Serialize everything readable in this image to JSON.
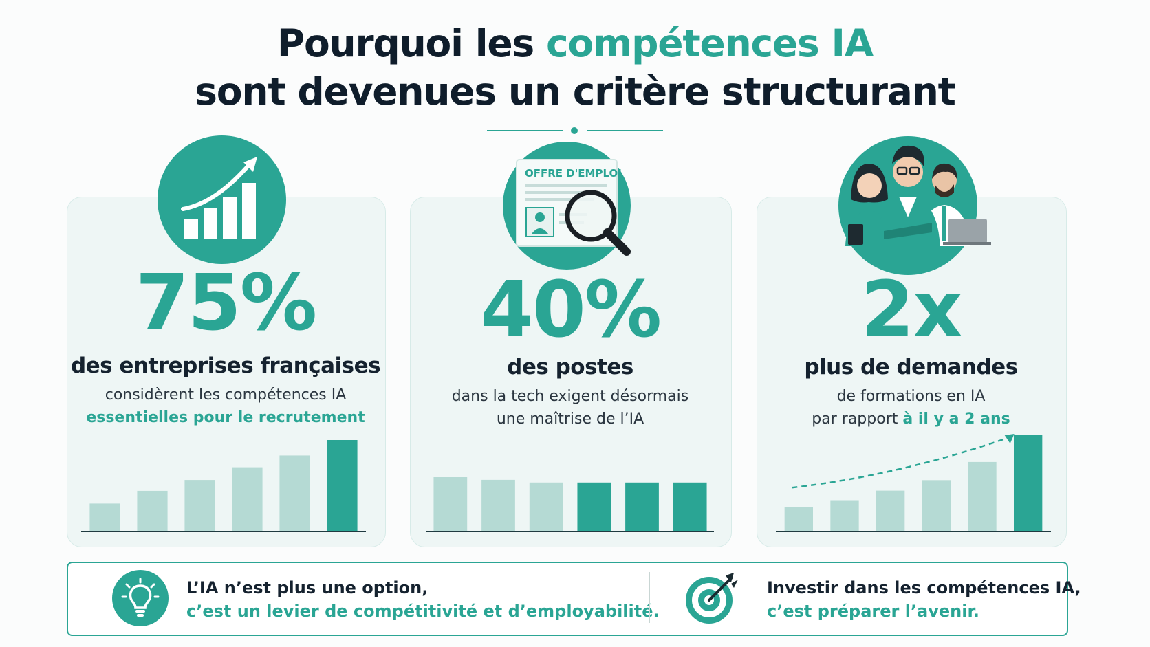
{
  "title": {
    "part1": "Pourquoi les ",
    "accent": "compétences IA",
    "line2": "sont devenues un critère structurant"
  },
  "colors": {
    "accent": "#2aa594",
    "dark": "#0f1d2b",
    "bar_light": "#b5dad4",
    "card_bg": "#eef6f5"
  },
  "cards": [
    {
      "icon": "growth-chart-icon",
      "stat": "75%",
      "label": "des entreprises françaises",
      "line1": "considèrent les compétences IA",
      "line2_accent": "essentielles pour le recrutement",
      "mini_bars": [
        0.3,
        0.44,
        0.56,
        0.7,
        0.83,
        1.0
      ]
    },
    {
      "icon": "job-offer-magnifier-icon",
      "badge": "OFFRE D'EMPLOI",
      "stat": "40%",
      "label": "des postes",
      "line1": "dans la tech exigent désormais",
      "line2": "une maîtrise de l’IA",
      "mini_bars": [
        1.0,
        0.95,
        0.9,
        0.9,
        0.9,
        0.9
      ],
      "highlighted_bars": [
        3,
        4,
        5
      ]
    },
    {
      "icon": "team-people-icon",
      "stat": "2x",
      "label": "plus de demandes",
      "line1": "de formations en IA",
      "line2_plain": "par rapport ",
      "line2_accent": "à il y a 2 ans",
      "mini_bars": [
        0.25,
        0.32,
        0.42,
        0.53,
        0.72,
        1.0
      ]
    }
  ],
  "bottom": {
    "left": {
      "icon": "lightbulb-icon",
      "line1": "L’IA n’est plus une option,",
      "line2": "c’est un levier de compétitivité et d’employabilité."
    },
    "right": {
      "icon": "target-arrow-icon",
      "line1": "Investir dans les compétences IA,",
      "line2": "c’est préparer l’avenir."
    }
  }
}
